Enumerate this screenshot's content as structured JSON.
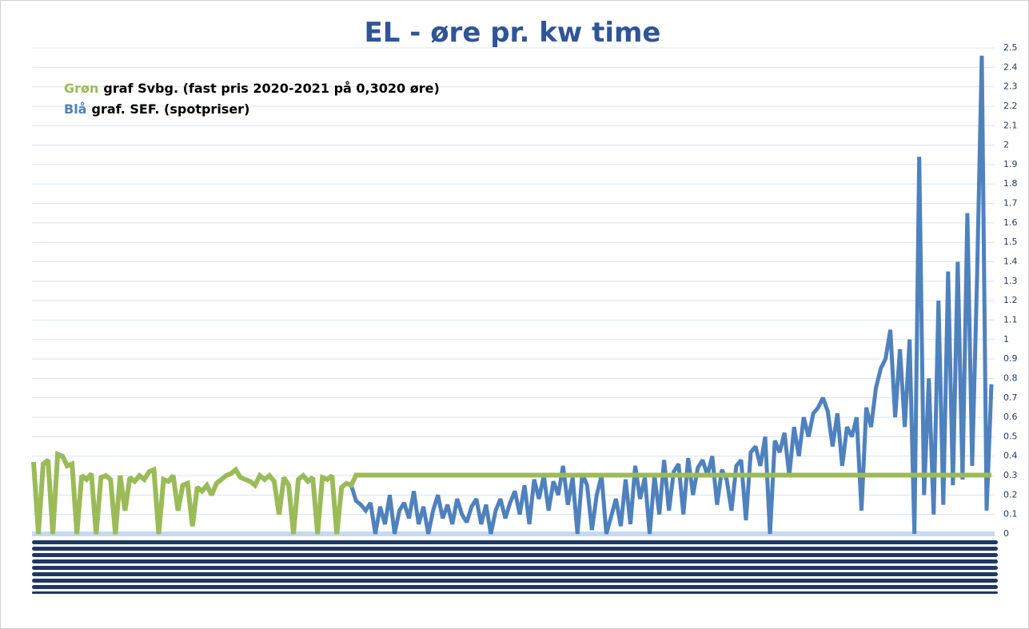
{
  "chart_data": {
    "type": "line",
    "title": "EL - øre pr. kw time",
    "annotations": [
      "graf Svbg.  (fast pris 2020-2021 på 0,3020 øre)",
      "graf. SEF. (spotpriser)"
    ],
    "ylim": [
      0,
      2.5
    ],
    "yticks": [
      0,
      0.1,
      0.2,
      0.3,
      0.4,
      0.5,
      0.6,
      0.7,
      0.8,
      0.9,
      1,
      1.1,
      1.2,
      1.3,
      1.4,
      1.5,
      1.6,
      1.7,
      1.8,
      1.9,
      2,
      2.1,
      2.2,
      2.3,
      2.4,
      2.5
    ],
    "grid": true,
    "series": [
      {
        "name": "Blå",
        "color": "#4f81bd",
        "values": [
          0.37,
          0.0,
          0.36,
          0.38,
          0.0,
          0.41,
          0.4,
          0.35,
          0.36,
          0.0,
          0.3,
          0.28,
          0.31,
          0.0,
          0.29,
          0.3,
          0.28,
          0.0,
          0.3,
          0.12,
          0.29,
          0.27,
          0.3,
          0.28,
          0.32,
          0.33,
          0.0,
          0.28,
          0.27,
          0.3,
          0.12,
          0.25,
          0.26,
          0.04,
          0.24,
          0.22,
          0.25,
          0.2,
          0.26,
          0.28,
          0.3,
          0.31,
          0.33,
          0.29,
          0.28,
          0.27,
          0.25,
          0.3,
          0.28,
          0.3,
          0.27,
          0.1,
          0.29,
          0.25,
          0.0,
          0.28,
          0.3,
          0.27,
          0.29,
          0.0,
          0.29,
          0.28,
          0.3,
          0.0,
          0.24,
          0.26,
          0.25,
          0.17,
          0.15,
          0.12,
          0.16,
          0.0,
          0.14,
          0.05,
          0.2,
          0.0,
          0.12,
          0.16,
          0.08,
          0.22,
          0.05,
          0.14,
          0.0,
          0.12,
          0.2,
          0.08,
          0.15,
          0.05,
          0.18,
          0.1,
          0.06,
          0.14,
          0.18,
          0.05,
          0.15,
          0.0,
          0.12,
          0.18,
          0.08,
          0.16,
          0.22,
          0.1,
          0.25,
          0.05,
          0.28,
          0.18,
          0.3,
          0.12,
          0.27,
          0.2,
          0.35,
          0.15,
          0.29,
          0.0,
          0.31,
          0.25,
          0.02,
          0.2,
          0.3,
          0.0,
          0.09,
          0.18,
          0.04,
          0.28,
          0.05,
          0.35,
          0.18,
          0.29,
          0.0,
          0.3,
          0.1,
          0.38,
          0.12,
          0.32,
          0.36,
          0.1,
          0.39,
          0.2,
          0.34,
          0.38,
          0.3,
          0.4,
          0.15,
          0.33,
          0.28,
          0.12,
          0.35,
          0.38,
          0.07,
          0.42,
          0.45,
          0.35,
          0.5,
          0.0,
          0.48,
          0.42,
          0.52,
          0.3,
          0.55,
          0.4,
          0.6,
          0.5,
          0.62,
          0.65,
          0.7,
          0.63,
          0.45,
          0.62,
          0.35,
          0.55,
          0.5,
          0.6,
          0.12,
          0.65,
          0.55,
          0.75,
          0.85,
          0.9,
          1.05,
          0.6,
          0.95,
          0.55,
          1.0,
          0.0,
          1.94,
          0.2,
          0.8,
          0.1,
          1.2,
          0.15,
          1.35,
          0.25,
          1.4,
          0.28,
          1.65,
          0.35,
          1.3,
          2.46,
          0.12,
          0.77
        ]
      },
      {
        "name": "Grøn",
        "color": "#9bbb59",
        "values": [
          0.37,
          0.0,
          0.36,
          0.38,
          0.0,
          0.41,
          0.4,
          0.35,
          0.36,
          0.0,
          0.3,
          0.28,
          0.31,
          0.0,
          0.29,
          0.3,
          0.28,
          0.0,
          0.3,
          0.12,
          0.29,
          0.27,
          0.3,
          0.28,
          0.32,
          0.33,
          0.0,
          0.28,
          0.27,
          0.3,
          0.12,
          0.25,
          0.26,
          0.04,
          0.24,
          0.22,
          0.25,
          0.2,
          0.26,
          0.28,
          0.3,
          0.31,
          0.33,
          0.29,
          0.28,
          0.27,
          0.25,
          0.3,
          0.28,
          0.3,
          0.27,
          0.1,
          0.29,
          0.25,
          0.0,
          0.28,
          0.3,
          0.27,
          0.29,
          0.0,
          0.29,
          0.28,
          0.3,
          0.0,
          0.24,
          0.26,
          0.25,
          0.302,
          0.302,
          0.302,
          0.302,
          0.302,
          0.302,
          0.302,
          0.302,
          0.302,
          0.302,
          0.302,
          0.302,
          0.302,
          0.302,
          0.302,
          0.302,
          0.302,
          0.302,
          0.302,
          0.302,
          0.302,
          0.302,
          0.302,
          0.302,
          0.302,
          0.302,
          0.302,
          0.302,
          0.302,
          0.302,
          0.302,
          0.302,
          0.302,
          0.302,
          0.302,
          0.302,
          0.302,
          0.302,
          0.302,
          0.302,
          0.302,
          0.302,
          0.302,
          0.302,
          0.302,
          0.302,
          0.302,
          0.302,
          0.302,
          0.302,
          0.302,
          0.302,
          0.302,
          0.302,
          0.302,
          0.302,
          0.302,
          0.302,
          0.302,
          0.302,
          0.302,
          0.302,
          0.302,
          0.302,
          0.302,
          0.302,
          0.302,
          0.302,
          0.302,
          0.302,
          0.302,
          0.302,
          0.302,
          0.302,
          0.302,
          0.302,
          0.302,
          0.302,
          0.302,
          0.302,
          0.302,
          0.302,
          0.302,
          0.302,
          0.302,
          0.302,
          0.302,
          0.302,
          0.302,
          0.302,
          0.302,
          0.302,
          0.302,
          0.302,
          0.302,
          0.302,
          0.302,
          0.302,
          0.302,
          0.302,
          0.302,
          0.302,
          0.302,
          0.302,
          0.302,
          0.302,
          0.302,
          0.302,
          0.302,
          0.302,
          0.302,
          0.302,
          0.302,
          0.302,
          0.302,
          0.302,
          0.302,
          0.302,
          0.302,
          0.302,
          0.302,
          0.302,
          0.302,
          0.302,
          0.302,
          0.302,
          0.302,
          0.302,
          0.302,
          0.302,
          0.302,
          0.302,
          0.302
        ]
      }
    ]
  }
}
